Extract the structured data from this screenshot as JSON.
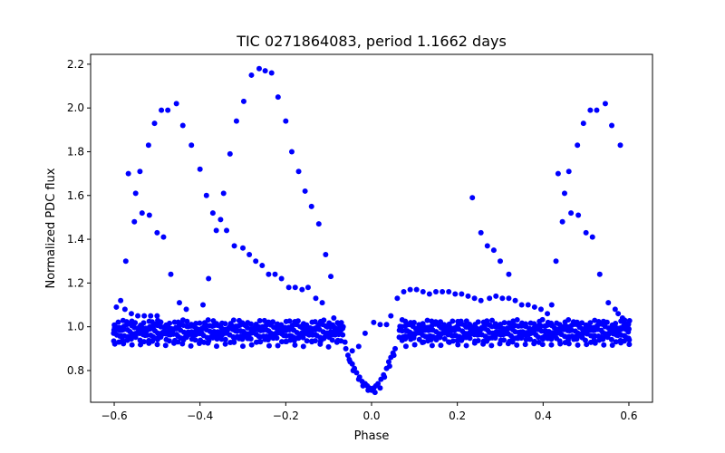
{
  "chart_data": {
    "type": "scatter",
    "title": "TIC 0271864083, period 1.1662 days",
    "xlabel": "Phase",
    "ylabel": "Normalized PDC flux",
    "xlim": [
      -0.655,
      0.655
    ],
    "ylim": [
      0.655,
      2.245
    ],
    "xticks": [
      -0.6,
      -0.4,
      -0.2,
      0.0,
      0.2,
      0.4,
      0.6
    ],
    "xtick_labels": [
      "−0.6",
      "−0.4",
      "−0.2",
      "0.0",
      "0.2",
      "0.4",
      "0.6"
    ],
    "yticks": [
      0.8,
      1.0,
      1.2,
      1.4,
      1.6,
      1.8,
      2.0,
      2.2
    ],
    "ytick_labels": [
      "0.8",
      "1.0",
      "1.2",
      "1.4",
      "1.6",
      "1.8",
      "2.0",
      "2.2"
    ],
    "grid": false,
    "marker_color": "#0000ff",
    "series": [
      {
        "points": [
          [
            -0.573,
            1.3
          ],
          [
            -0.567,
            1.7
          ],
          [
            -0.553,
            1.48
          ],
          [
            -0.55,
            1.61
          ],
          [
            -0.54,
            1.71
          ],
          [
            -0.535,
            1.52
          ],
          [
            -0.52,
            1.83
          ],
          [
            -0.518,
            1.51
          ],
          [
            -0.506,
            1.93
          ],
          [
            -0.5,
            1.43
          ],
          [
            -0.49,
            1.99
          ],
          [
            -0.485,
            1.41
          ],
          [
            -0.475,
            1.99
          ],
          [
            -0.468,
            1.24
          ],
          [
            -0.455,
            2.02
          ],
          [
            -0.448,
            1.11
          ],
          [
            -0.44,
            1.92
          ],
          [
            -0.432,
            1.08
          ],
          [
            -0.42,
            1.83
          ],
          [
            -0.4,
            1.72
          ],
          [
            -0.393,
            1.1
          ],
          [
            -0.385,
            1.6
          ],
          [
            -0.38,
            1.22
          ],
          [
            -0.37,
            1.52
          ],
          [
            -0.362,
            1.44
          ],
          [
            -0.352,
            1.49
          ],
          [
            -0.345,
            1.61
          ],
          [
            -0.338,
            1.44
          ],
          [
            -0.33,
            1.79
          ],
          [
            -0.32,
            1.37
          ],
          [
            -0.315,
            1.94
          ],
          [
            -0.3,
            1.36
          ],
          [
            -0.298,
            2.03
          ],
          [
            -0.285,
            1.33
          ],
          [
            -0.28,
            2.15
          ],
          [
            -0.27,
            1.3
          ],
          [
            -0.262,
            2.18
          ],
          [
            -0.255,
            1.28
          ],
          [
            -0.248,
            2.17
          ],
          [
            -0.24,
            1.24
          ],
          [
            -0.233,
            2.16
          ],
          [
            -0.225,
            1.24
          ],
          [
            -0.218,
            2.05
          ],
          [
            -0.21,
            1.22
          ],
          [
            -0.2,
            1.94
          ],
          [
            -0.193,
            1.18
          ],
          [
            -0.186,
            1.8
          ],
          [
            -0.178,
            1.18
          ],
          [
            -0.17,
            1.71
          ],
          [
            -0.162,
            1.17
          ],
          [
            -0.155,
            1.62
          ],
          [
            -0.148,
            1.18
          ],
          [
            -0.14,
            1.55
          ],
          [
            -0.13,
            1.13
          ],
          [
            -0.123,
            1.47
          ],
          [
            -0.115,
            1.11
          ],
          [
            -0.107,
            1.33
          ],
          [
            -0.095,
            1.23
          ],
          [
            -0.088,
            1.04
          ],
          [
            -0.075,
            1.01
          ],
          [
            -0.062,
            0.93
          ],
          [
            -0.045,
            0.89
          ],
          [
            -0.03,
            0.91
          ],
          [
            -0.015,
            0.97
          ],
          [
            0.005,
            1.02
          ],
          [
            0.02,
            1.01
          ],
          [
            0.035,
            1.01
          ],
          [
            0.045,
            1.05
          ],
          [
            0.06,
            1.13
          ],
          [
            0.075,
            1.16
          ],
          [
            0.09,
            1.17
          ],
          [
            0.105,
            1.17
          ],
          [
            0.12,
            1.16
          ],
          [
            0.135,
            1.15
          ],
          [
            0.15,
            1.16
          ],
          [
            0.165,
            1.16
          ],
          [
            0.18,
            1.16
          ],
          [
            0.195,
            1.15
          ],
          [
            0.21,
            1.15
          ],
          [
            0.225,
            1.14
          ],
          [
            0.235,
            1.59
          ],
          [
            0.24,
            1.13
          ],
          [
            0.255,
            1.43
          ],
          [
            0.255,
            1.12
          ],
          [
            0.27,
            1.37
          ],
          [
            0.275,
            1.13
          ],
          [
            0.285,
            1.35
          ],
          [
            0.29,
            1.14
          ],
          [
            0.3,
            1.3
          ],
          [
            0.305,
            1.13
          ],
          [
            0.32,
            1.24
          ],
          [
            0.32,
            1.13
          ],
          [
            0.335,
            1.12
          ],
          [
            0.35,
            1.1
          ],
          [
            0.365,
            1.1
          ],
          [
            0.38,
            1.09
          ],
          [
            0.395,
            1.08
          ],
          [
            0.41,
            1.06
          ],
          [
            0.42,
            1.1
          ],
          [
            0.43,
            1.3
          ],
          [
            0.435,
            1.7
          ],
          [
            0.445,
            1.48
          ],
          [
            0.45,
            1.61
          ],
          [
            0.46,
            1.71
          ],
          [
            0.465,
            1.52
          ],
          [
            0.48,
            1.83
          ],
          [
            0.482,
            1.51
          ],
          [
            0.494,
            1.93
          ],
          [
            0.5,
            1.43
          ],
          [
            0.51,
            1.99
          ],
          [
            0.515,
            1.41
          ],
          [
            0.525,
            1.99
          ],
          [
            0.532,
            1.24
          ],
          [
            0.545,
            2.02
          ],
          [
            0.552,
            1.11
          ],
          [
            0.56,
            1.92
          ],
          [
            0.568,
            1.08
          ],
          [
            0.58,
            1.83
          ],
          [
            -0.595,
            1.09
          ],
          [
            -0.585,
            1.12
          ],
          [
            -0.575,
            1.08
          ],
          [
            -0.56,
            1.06
          ],
          [
            -0.545,
            1.05
          ],
          [
            -0.53,
            1.05
          ],
          [
            -0.515,
            1.05
          ],
          [
            -0.5,
            1.05
          ],
          [
            -0.06,
            0.9
          ],
          [
            -0.055,
            0.87
          ],
          [
            -0.052,
            0.85
          ],
          [
            -0.045,
            0.83
          ],
          [
            -0.04,
            0.81
          ],
          [
            -0.035,
            0.79
          ],
          [
            -0.028,
            0.77
          ],
          [
            -0.022,
            0.75
          ],
          [
            -0.015,
            0.74
          ],
          [
            -0.01,
            0.73
          ],
          [
            -0.005,
            0.72
          ],
          [
            0.0,
            0.71
          ],
          [
            0.005,
            0.72
          ],
          [
            0.01,
            0.73
          ],
          [
            0.015,
            0.74
          ],
          [
            0.022,
            0.76
          ],
          [
            0.028,
            0.78
          ],
          [
            0.035,
            0.81
          ],
          [
            0.04,
            0.84
          ],
          [
            0.045,
            0.86
          ],
          [
            0.05,
            0.88
          ],
          [
            0.055,
            0.9
          ],
          [
            -0.05,
            0.84
          ],
          [
            -0.043,
            0.8
          ],
          [
            -0.03,
            0.76
          ],
          [
            -0.02,
            0.73
          ],
          [
            -0.008,
            0.71
          ],
          [
            0.008,
            0.7
          ],
          [
            0.02,
            0.72
          ],
          [
            0.03,
            0.77
          ],
          [
            0.042,
            0.82
          ],
          [
            0.052,
            0.87
          ],
          [
            0.575,
            1.06
          ],
          [
            0.585,
            1.04
          ],
          [
            0.595,
            1.0
          ],
          [
            0.6,
            0.99
          ],
          [
            0.59,
            1.03
          ]
        ],
        "bands": [
          {
            "center": 1.0,
            "spacing": 0.006
          },
          {
            "center": 0.98,
            "spacing": 0.006
          },
          {
            "center": 0.96,
            "spacing": 0.006
          },
          {
            "center": 0.94,
            "spacing": 0.01
          },
          {
            "center": 1.02,
            "spacing": 0.01
          },
          {
            "center": 0.92,
            "spacing": 0.02
          }
        ]
      }
    ]
  }
}
